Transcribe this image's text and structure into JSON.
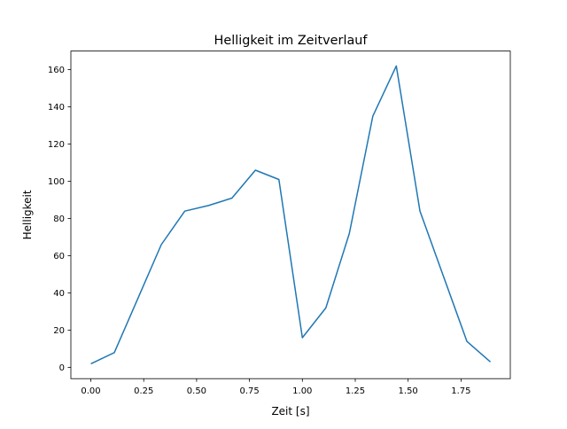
{
  "chart_data": {
    "type": "line",
    "title": "Helligkeit im Zeitverlauf",
    "xlabel": "Zeit [s]",
    "ylabel": "Helligkeit",
    "x": [
      0,
      0.111,
      0.222,
      0.333,
      0.444,
      0.556,
      0.667,
      0.778,
      0.889,
      1.0,
      1.111,
      1.222,
      1.333,
      1.444,
      1.556,
      1.667,
      1.778,
      1.889
    ],
    "series": [
      {
        "name": "Helligkeit",
        "color": "#1f77b4",
        "values": [
          2,
          8,
          37,
          66,
          84,
          87,
          91,
          106,
          101,
          16,
          32,
          72,
          135,
          162,
          84,
          49,
          14,
          3
        ]
      }
    ],
    "xlim": [
      -0.0944,
      1.983
    ],
    "ylim": [
      -6,
      170
    ],
    "xticks": [
      0,
      0.25,
      0.5,
      0.75,
      1.0,
      1.25,
      1.5,
      1.75
    ],
    "xtick_labels": [
      "0.00",
      "0.25",
      "0.50",
      "0.75",
      "1.00",
      "1.25",
      "1.50",
      "1.75"
    ],
    "yticks": [
      0,
      20,
      40,
      60,
      80,
      100,
      120,
      140,
      160
    ],
    "ytick_labels": [
      "0",
      "20",
      "40",
      "60",
      "80",
      "100",
      "120",
      "140",
      "160"
    ],
    "grid": false
  }
}
